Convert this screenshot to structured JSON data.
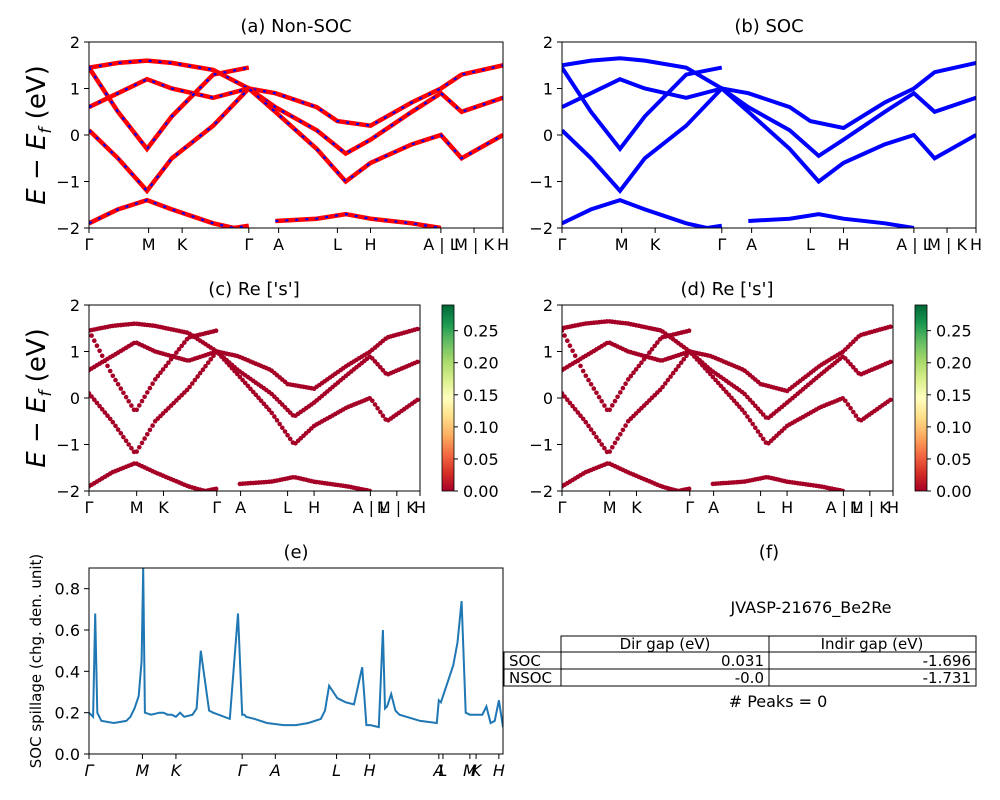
{
  "figure": {
    "ylabel_main": "E − E",
    "ylabel_sub": "f",
    "ylabel_tail": " (eV)",
    "spillage_ylabel": "SOC spillage (chg. den. unit)"
  },
  "panels": {
    "a": {
      "title": "(a) Non-SOC"
    },
    "b": {
      "title": "(b) SOC"
    },
    "c": {
      "title": "(c)  Re ['s']"
    },
    "d": {
      "title": "(d) Re ['s']"
    },
    "e": {
      "title": "(e)"
    },
    "f": {
      "title": "(f)"
    }
  },
  "band_kpath_labels": [
    "Γ",
    "M",
    "K",
    "Γ",
    "A",
    "L",
    "H",
    "A | L",
    "M | K",
    "H"
  ],
  "band_kpath_positions": [
    0,
    0.144,
    0.225,
    0.386,
    0.458,
    0.6,
    0.68,
    0.85,
    0.93,
    1.0
  ],
  "energy_ticks": [
    "2",
    "1",
    "0",
    "−1",
    "−2"
  ],
  "energy_tick_values": [
    2,
    1,
    0,
    -1,
    -2
  ],
  "colorbar": {
    "ticks": [
      "0.25",
      "0.20",
      "0.15",
      "0.10",
      "0.05",
      "0.00"
    ],
    "tick_values": [
      0.25,
      0.2,
      0.15,
      0.1,
      0.05,
      0.0
    ],
    "range": [
      0,
      0.29
    ],
    "colors": [
      "#a50026",
      "#d73027",
      "#f46d43",
      "#fdae61",
      "#fee08b",
      "#ffffbf",
      "#d9ef8b",
      "#a6d96a",
      "#66bd63",
      "#1a9850",
      "#006837"
    ]
  },
  "colors": {
    "nonsoc_primary": "#ff0000",
    "nonsoc_dash": "#0000ff",
    "soc": "#0000ff",
    "spillage": "#1f77b4",
    "points": "#a50026"
  },
  "chart_data": [
    {
      "type": "line",
      "title": "(a) Non-SOC",
      "ylabel": "E − Ef (eV)",
      "ylim": [
        -2,
        2
      ],
      "xticks": [
        "Γ",
        "M",
        "K",
        "Γ",
        "A",
        "L",
        "H",
        "A | L",
        "M | K",
        "H"
      ],
      "series": [
        {
          "x": [
            0,
            0.07,
            0.14,
            0.2,
            0.3,
            0.386,
            0.45,
            0.55,
            0.6,
            0.68,
            0.78,
            0.85,
            0.9,
            1.0
          ],
          "y": [
            1.45,
            1.55,
            1.6,
            1.55,
            1.4,
            1.0,
            0.9,
            0.6,
            0.3,
            0.2,
            0.7,
            1.0,
            1.3,
            1.5
          ]
        },
        {
          "x": [
            0,
            0.07,
            0.14,
            0.2,
            0.3,
            0.386,
            0.45,
            0.55,
            0.62,
            0.68,
            0.78,
            0.85,
            0.9,
            1.0
          ],
          "y": [
            0.6,
            0.9,
            1.2,
            1.0,
            0.8,
            1.0,
            0.6,
            0.1,
            -0.4,
            -0.1,
            0.5,
            0.9,
            0.5,
            0.8
          ]
        },
        {
          "x": [
            0,
            0.07,
            0.14,
            0.2,
            0.3,
            0.386,
            0.45,
            0.55,
            0.62,
            0.68,
            0.78,
            0.85,
            0.9,
            1.0
          ],
          "y": [
            0.1,
            -0.5,
            -1.2,
            -0.5,
            0.2,
            1.0,
            0.5,
            -0.3,
            -1.0,
            -0.6,
            -0.2,
            0.0,
            -0.5,
            0.0
          ]
        },
        {
          "x": [
            0,
            0.07,
            0.14,
            0.2,
            0.3,
            0.35,
            0.386
          ],
          "y": [
            -1.9,
            -1.6,
            -1.4,
            -1.6,
            -1.9,
            -2.0,
            -1.95
          ]
        },
        {
          "x": [
            0.45,
            0.55,
            0.62,
            0.68,
            0.78,
            0.85
          ],
          "y": [
            -1.85,
            -1.8,
            -1.7,
            -1.8,
            -1.9,
            -2.0
          ]
        },
        {
          "x": [
            0,
            0.07,
            0.14,
            0.2,
            0.3,
            0.386
          ],
          "y": [
            1.45,
            0.5,
            -0.3,
            0.4,
            1.3,
            1.45
          ]
        }
      ]
    },
    {
      "type": "line",
      "title": "(b) SOC",
      "ylim": [
        -2,
        2
      ],
      "xticks": [
        "Γ",
        "M",
        "K",
        "Γ",
        "A",
        "L",
        "H",
        "A | L",
        "M | K",
        "H"
      ],
      "series": [
        {
          "x": [
            0,
            0.07,
            0.14,
            0.2,
            0.3,
            0.386,
            0.45,
            0.55,
            0.6,
            0.68,
            0.78,
            0.85,
            0.9,
            1.0
          ],
          "y": [
            1.5,
            1.6,
            1.65,
            1.6,
            1.45,
            1.0,
            0.9,
            0.6,
            0.3,
            0.15,
            0.7,
            1.0,
            1.35,
            1.55
          ]
        },
        {
          "x": [
            0,
            0.07,
            0.14,
            0.2,
            0.3,
            0.386,
            0.45,
            0.55,
            0.62,
            0.68,
            0.78,
            0.85,
            0.9,
            1.0
          ],
          "y": [
            0.6,
            0.9,
            1.2,
            1.0,
            0.8,
            1.0,
            0.6,
            0.1,
            -0.45,
            -0.1,
            0.5,
            0.9,
            0.5,
            0.8
          ]
        },
        {
          "x": [
            0,
            0.07,
            0.14,
            0.2,
            0.3,
            0.386,
            0.45,
            0.55,
            0.62,
            0.68,
            0.78,
            0.85,
            0.9,
            1.0
          ],
          "y": [
            0.1,
            -0.5,
            -1.2,
            -0.5,
            0.2,
            1.0,
            0.5,
            -0.3,
            -1.0,
            -0.6,
            -0.2,
            0.0,
            -0.5,
            0.0
          ]
        },
        {
          "x": [
            0,
            0.07,
            0.14,
            0.2,
            0.3,
            0.35,
            0.386
          ],
          "y": [
            -1.9,
            -1.6,
            -1.4,
            -1.6,
            -1.9,
            -2.0,
            -1.95
          ]
        },
        {
          "x": [
            0.45,
            0.55,
            0.62,
            0.68,
            0.78,
            0.85
          ],
          "y": [
            -1.85,
            -1.8,
            -1.7,
            -1.8,
            -1.9,
            -2.0
          ]
        },
        {
          "x": [
            0,
            0.07,
            0.14,
            0.2,
            0.3,
            0.386
          ],
          "y": [
            1.45,
            0.5,
            -0.3,
            0.4,
            1.3,
            1.45
          ]
        }
      ]
    },
    {
      "type": "scatter",
      "title": "(c)  Re ['s']",
      "ylabel": "E − Ef (eV)",
      "ylim": [
        -2,
        2
      ],
      "colorbar_range": [
        0,
        0.29
      ],
      "xticks": [
        "Γ",
        "M",
        "K",
        "Γ",
        "A",
        "L",
        "H",
        "A | L",
        "M | K",
        "H"
      ],
      "series_ref": "bands of (a)"
    },
    {
      "type": "scatter",
      "title": "(d) Re ['s']",
      "ylim": [
        -2,
        2
      ],
      "colorbar_range": [
        0,
        0.29
      ],
      "xticks": [
        "Γ",
        "M",
        "K",
        "Γ",
        "A",
        "L",
        "H",
        "A | L",
        "M | K",
        "H"
      ],
      "series_ref": "bands of (b)"
    },
    {
      "type": "line",
      "title": "(e)",
      "ylabel": "SOC spillage (chg. den. unit)",
      "ylim": [
        0,
        0.9
      ],
      "yticks": [
        "0.0",
        "0.2",
        "0.4",
        "0.6",
        "0.8"
      ],
      "ytick_values": [
        0.0,
        0.2,
        0.4,
        0.6,
        0.8
      ],
      "xticks": [
        "Γ",
        "M",
        "K",
        "Γ",
        "A",
        "L",
        "H",
        "A",
        "L",
        "M",
        "K",
        "H"
      ],
      "xtick_positions": [
        0,
        0.129,
        0.21,
        0.37,
        0.45,
        0.598,
        0.678,
        0.845,
        0.855,
        0.92,
        0.935,
        0.99
      ],
      "x": [
        0,
        0.01,
        0.015,
        0.02,
        0.03,
        0.06,
        0.09,
        0.1,
        0.11,
        0.12,
        0.127,
        0.131,
        0.135,
        0.15,
        0.17,
        0.18,
        0.19,
        0.2,
        0.21,
        0.22,
        0.23,
        0.25,
        0.26,
        0.27,
        0.29,
        0.3,
        0.34,
        0.36,
        0.37,
        0.375,
        0.38,
        0.4,
        0.43,
        0.47,
        0.5,
        0.53,
        0.56,
        0.565,
        0.57,
        0.58,
        0.6,
        0.62,
        0.64,
        0.66,
        0.67,
        0.68,
        0.7,
        0.71,
        0.715,
        0.72,
        0.73,
        0.74,
        0.75,
        0.8,
        0.84,
        0.845,
        0.85,
        0.87,
        0.88,
        0.89,
        0.9,
        0.91,
        0.92,
        0.95,
        0.96,
        0.97,
        0.98,
        0.99,
        1.0
      ],
      "y": [
        0.2,
        0.18,
        0.68,
        0.2,
        0.16,
        0.15,
        0.16,
        0.18,
        0.22,
        0.28,
        0.45,
        0.9,
        0.2,
        0.19,
        0.2,
        0.2,
        0.19,
        0.19,
        0.18,
        0.2,
        0.18,
        0.19,
        0.22,
        0.5,
        0.21,
        0.2,
        0.17,
        0.68,
        0.19,
        0.19,
        0.18,
        0.17,
        0.15,
        0.14,
        0.14,
        0.15,
        0.17,
        0.19,
        0.21,
        0.33,
        0.27,
        0.25,
        0.24,
        0.42,
        0.14,
        0.14,
        0.13,
        0.6,
        0.22,
        0.23,
        0.29,
        0.21,
        0.19,
        0.16,
        0.15,
        0.26,
        0.25,
        0.37,
        0.43,
        0.54,
        0.74,
        0.2,
        0.19,
        0.19,
        0.23,
        0.15,
        0.16,
        0.26,
        0.13
      ]
    },
    {
      "type": "table",
      "title": "(f)",
      "caption": "JVASP-21676_Be2Re",
      "columns": [
        "",
        "Dir gap (eV)",
        "Indir gap (eV)"
      ],
      "rows": [
        [
          "SOC",
          "0.031",
          "-1.696"
        ],
        [
          "NSOC",
          "-0.0",
          "-1.731"
        ]
      ],
      "footer": "# Peaks = 0"
    }
  ]
}
